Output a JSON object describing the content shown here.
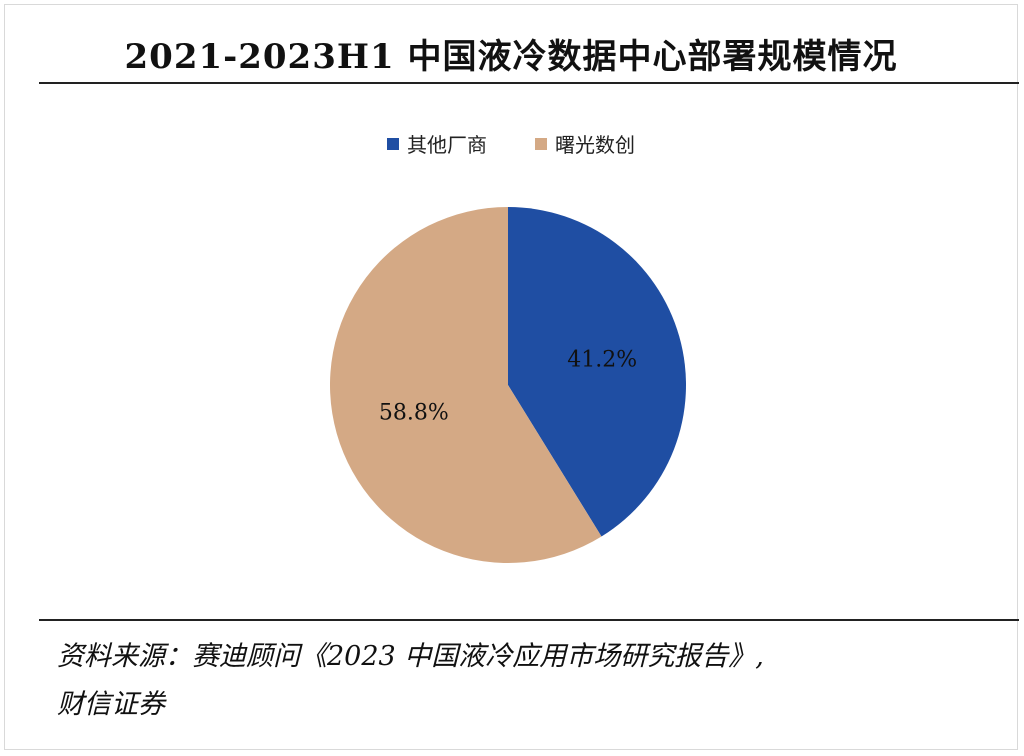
{
  "title": "2021-2023H1 中国液冷数据中心部署规模情况",
  "source": {
    "line1": "资料来源：赛迪顾问《2023 中国液冷应用市场研究报告》,",
    "line2": "财信证券"
  },
  "colors": {
    "other": "#1f4ea3",
    "sugon": "#d4a985"
  },
  "chart_data": {
    "type": "pie",
    "title": "2021-2023H1 中国液冷数据中心部署规模情况",
    "legend_position": "top-center",
    "slices": [
      {
        "name": "其他厂商",
        "value": 41.2,
        "label": "41.2%",
        "color": "#1f4ea3"
      },
      {
        "name": "曙光数创",
        "value": 58.8,
        "label": "58.8%",
        "color": "#d4a985"
      }
    ]
  }
}
